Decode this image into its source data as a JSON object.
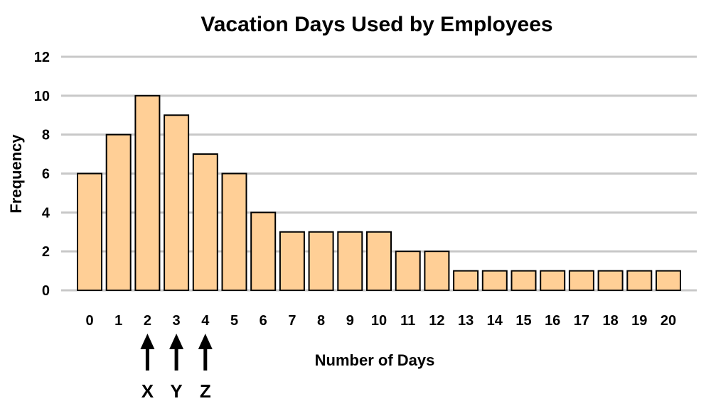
{
  "chart_data": {
    "type": "bar",
    "title": "Vacation Days Used by Employees",
    "xlabel": "Number of Days",
    "ylabel": "Frequency",
    "categories": [
      "0",
      "1",
      "2",
      "3",
      "4",
      "5",
      "6",
      "7",
      "8",
      "9",
      "10",
      "11",
      "12",
      "13",
      "14",
      "15",
      "16",
      "17",
      "18",
      "19",
      "20"
    ],
    "values": [
      6,
      8,
      10,
      9,
      7,
      6,
      4,
      3,
      3,
      3,
      3,
      2,
      2,
      1,
      1,
      1,
      1,
      1,
      1,
      1,
      1
    ],
    "ylim": [
      0,
      12
    ],
    "yticks": [
      0,
      2,
      4,
      6,
      8,
      10,
      12
    ],
    "grid": true,
    "bar_color": "#ffcf96",
    "annotations": [
      {
        "category": "2",
        "label": "X"
      },
      {
        "category": "3",
        "label": "Y"
      },
      {
        "category": "4",
        "label": "Z"
      }
    ]
  }
}
